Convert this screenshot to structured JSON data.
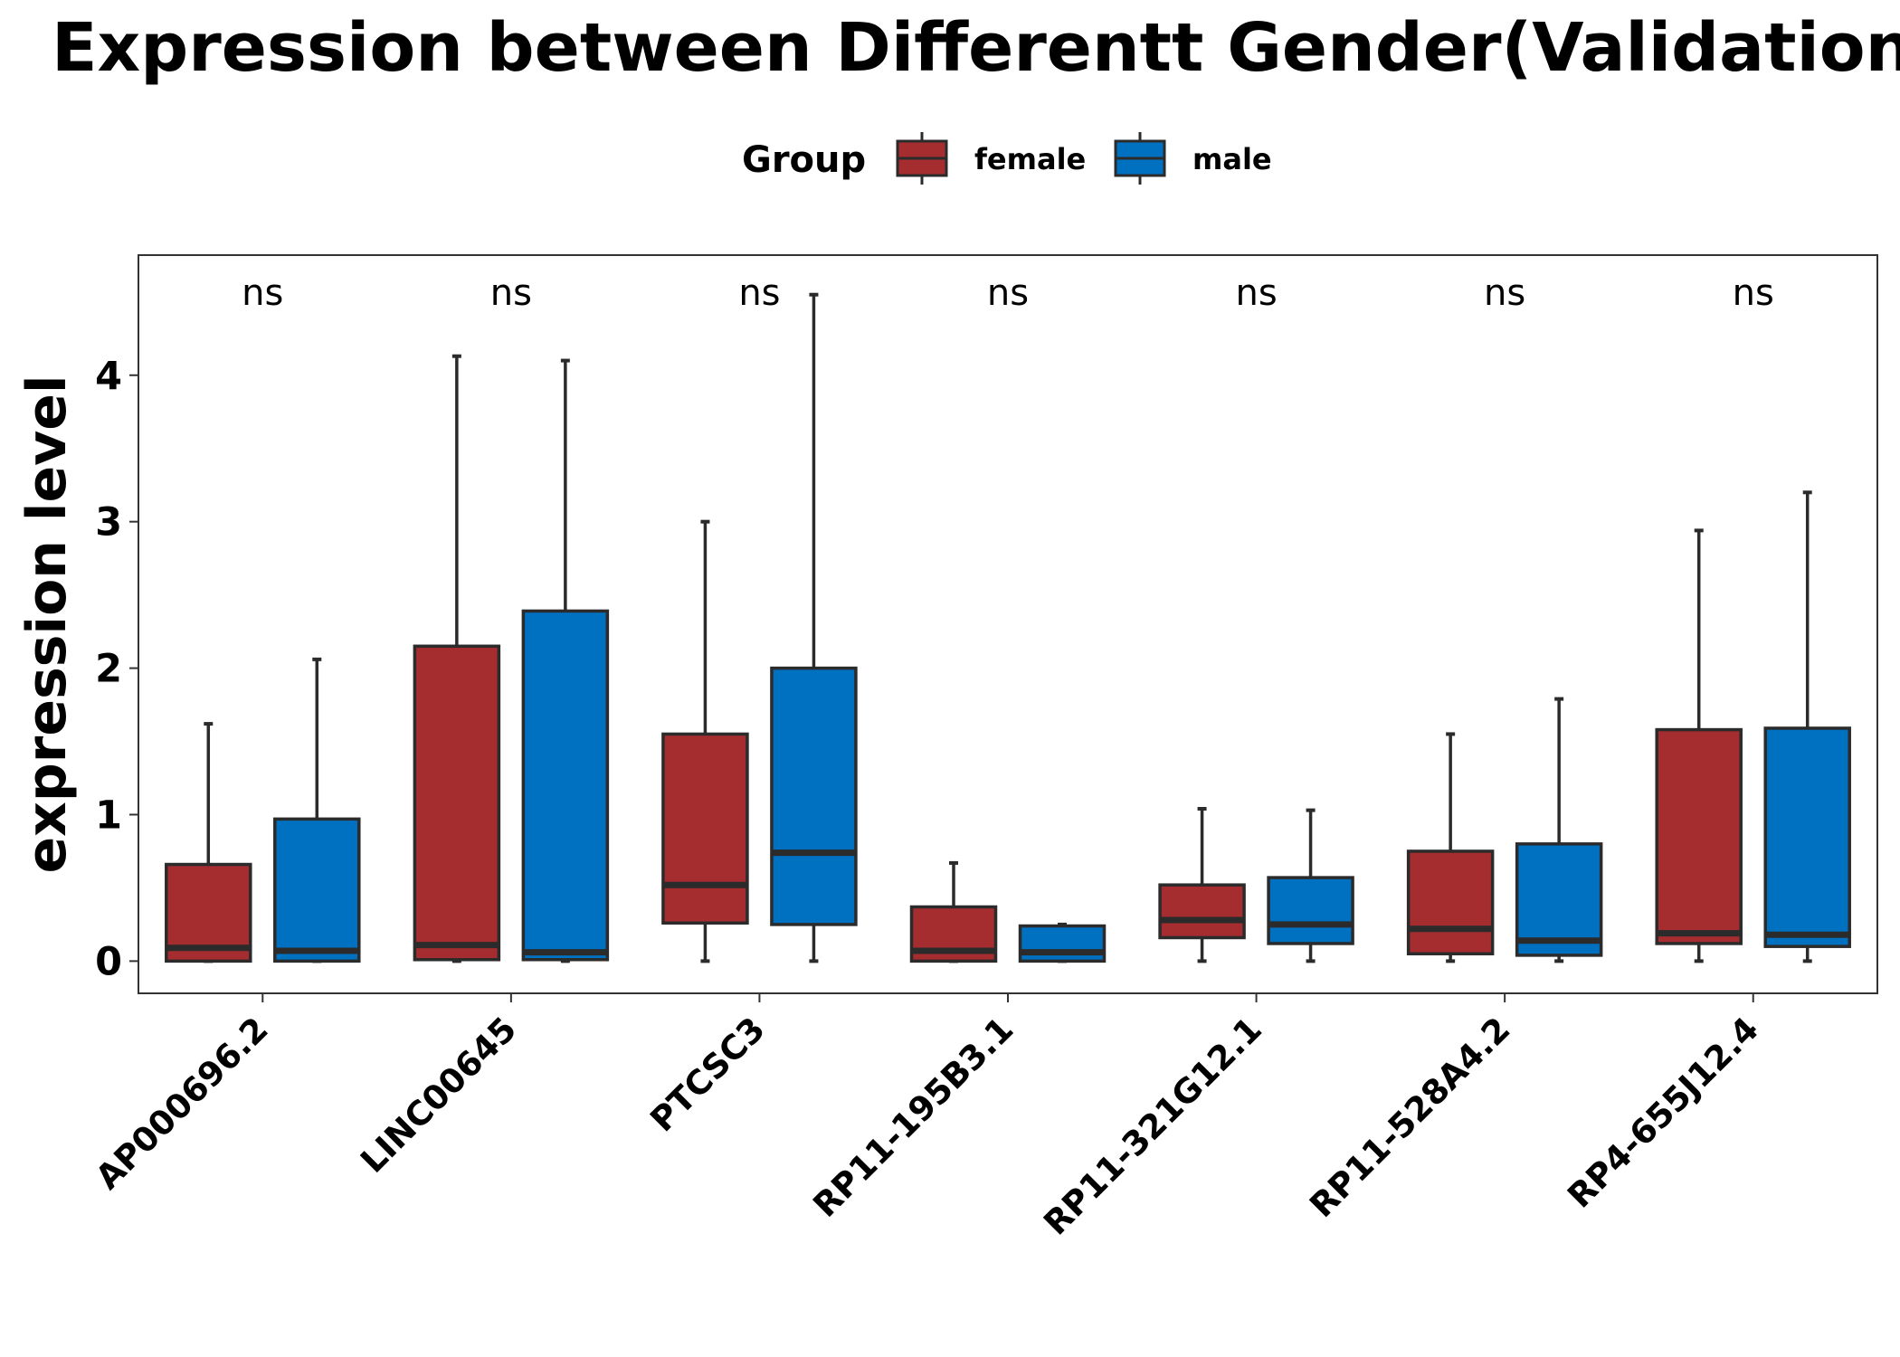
{
  "chart_data": {
    "type": "boxplot",
    "title": "Expression between Differentt Gender(Validation)",
    "xlabel": "",
    "ylabel": "expression level",
    "ylim": [
      -0.22,
      4.82
    ],
    "yticks": [
      0,
      1,
      2,
      3,
      4
    ],
    "grid": false,
    "legend": {
      "title": "Group",
      "position": "top",
      "entries": [
        "female",
        "male"
      ]
    },
    "colors": {
      "female": "#A52C2F",
      "male": "#0070C0",
      "outline": "#2B2B2B"
    },
    "categories": [
      "AP000696.2",
      "LINC00645",
      "PTCSC3",
      "RP11-195B3.1",
      "RP11-321G12.1",
      "RP11-528A4.2",
      "RP4-655J12.4"
    ],
    "annotations": [
      "ns",
      "ns",
      "ns",
      "ns",
      "ns",
      "ns",
      "ns"
    ],
    "series": [
      {
        "name": "female",
        "boxes": [
          {
            "min": 0.0,
            "q1": 0.0,
            "median": 0.09,
            "q3": 0.66,
            "max": 1.62
          },
          {
            "min": 0.0,
            "q1": 0.01,
            "median": 0.11,
            "q3": 2.15,
            "max": 4.13
          },
          {
            "min": 0.0,
            "q1": 0.26,
            "median": 0.52,
            "q3": 1.55,
            "max": 3.0
          },
          {
            "min": 0.0,
            "q1": 0.0,
            "median": 0.07,
            "q3": 0.37,
            "max": 0.67
          },
          {
            "min": 0.0,
            "q1": 0.16,
            "median": 0.28,
            "q3": 0.52,
            "max": 1.04
          },
          {
            "min": 0.0,
            "q1": 0.05,
            "median": 0.22,
            "q3": 0.75,
            "max": 1.55
          },
          {
            "min": 0.0,
            "q1": 0.12,
            "median": 0.19,
            "q3": 1.58,
            "max": 2.94
          }
        ]
      },
      {
        "name": "male",
        "boxes": [
          {
            "min": 0.0,
            "q1": 0.0,
            "median": 0.07,
            "q3": 0.97,
            "max": 2.06
          },
          {
            "min": 0.0,
            "q1": 0.01,
            "median": 0.06,
            "q3": 2.39,
            "max": 4.1
          },
          {
            "min": 0.0,
            "q1": 0.25,
            "median": 0.74,
            "q3": 2.0,
            "max": 4.55
          },
          {
            "min": 0.0,
            "q1": 0.0,
            "median": 0.06,
            "q3": 0.24,
            "max": 0.25
          },
          {
            "min": 0.0,
            "q1": 0.12,
            "median": 0.25,
            "q3": 0.57,
            "max": 1.03
          },
          {
            "min": 0.0,
            "q1": 0.04,
            "median": 0.14,
            "q3": 0.8,
            "max": 1.79
          },
          {
            "min": 0.0,
            "q1": 0.1,
            "median": 0.18,
            "q3": 1.59,
            "max": 3.2
          }
        ]
      }
    ]
  }
}
